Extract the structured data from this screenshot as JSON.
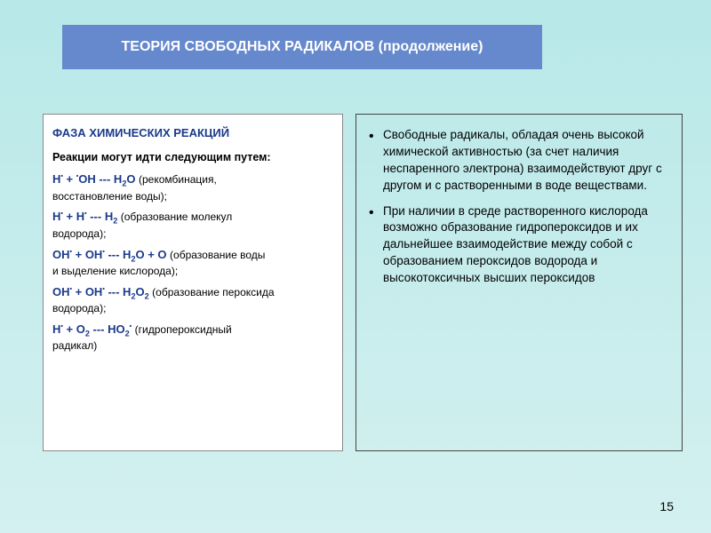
{
  "title": "ТЕОРИЯ СВОБОДНЫХ РАДИКАЛОВ (продолжение)",
  "left": {
    "heading": "ФАЗА ХИМИЧЕСКИХ РЕАКЦИЙ",
    "intro": "Реакции могут идти следующим путем:",
    "r1": {
      "f_a": "H",
      "f_b": " + ",
      "f_c": "OH",
      "f_d": " --- H",
      "f_e": "O",
      "d1": "(рекомбинация,",
      "d2": "восстановление воды);"
    },
    "r2": {
      "f_a": "H",
      "f_b": " + H",
      "f_c": " --- H",
      "d1": "(образование молекул",
      "d2": "водорода);"
    },
    "r3": {
      "f_a": "OH",
      "f_b": " + OH",
      "f_c": " --- H",
      "f_d": "O + O",
      "d1": "(образование воды",
      "d2": "и выделение кислорода);"
    },
    "r4": {
      "f_a": "OH",
      "f_b": " + OH",
      "f_c": " --- H",
      "f_d": "O",
      "d1": "(образование пероксида",
      "d2": "водорода);"
    },
    "r5": {
      "f_a": "H",
      "f_b": " + O",
      "f_c": " --- HO",
      "d1": "(гидропероксидный",
      "d2": "радикал)"
    }
  },
  "right": {
    "b1": "Свободные радикалы, обладая очень высокой химической активностью (за счет наличия неспаренного электрона) взаимодействуют друг с другом и с растворенными в воде веществами.",
    "b2": "При наличии в среде растворенного кислорода возможно образование гидропероксидов и их дальнейшее взаимодействие между собой с образованием пероксидов водорода и высокотоксичных высших пероксидов"
  },
  "page": "15",
  "colors": {
    "title_bg": "#6688cc",
    "formula_color": "#1a3a8a",
    "page_bg_top": "#b8e8e8"
  }
}
